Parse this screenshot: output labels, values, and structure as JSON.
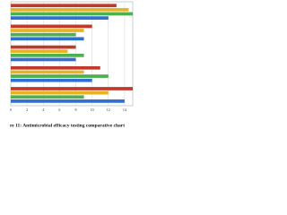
{
  "chart_data": {
    "type": "barh",
    "title": "re 11: Antimicrobial  efficacy testing comparative chart",
    "categories": [
      null,
      null,
      null,
      null,
      null
    ],
    "series": [
      {
        "color": "#c0392b",
        "values": [
          13,
          10,
          8,
          11,
          15
        ]
      },
      {
        "color": "#e6b422",
        "values": [
          14.5,
          9,
          7,
          9,
          12
        ]
      },
      {
        "color": "#4caf50",
        "values": [
          15,
          8,
          9,
          12,
          9
        ]
      },
      {
        "color": "#2e6fd1",
        "values": [
          12,
          9,
          8,
          10,
          14
        ]
      }
    ],
    "xlim": [
      0,
      15
    ],
    "xticks": [
      0,
      2,
      4,
      6,
      8,
      10,
      12,
      14
    ],
    "grid": true
  }
}
